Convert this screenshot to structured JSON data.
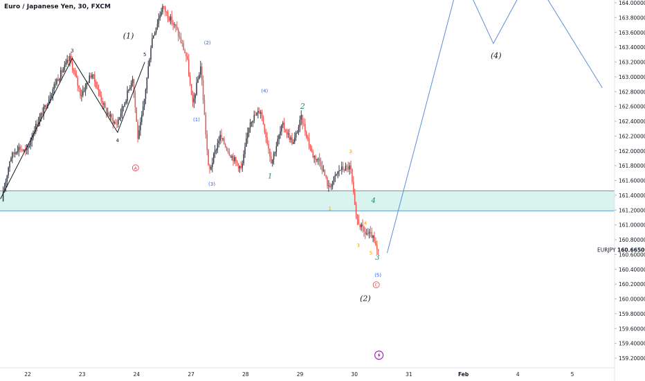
{
  "title": "Euro / Japanese Yen, 30, FXCM",
  "symbol": "EURJPY",
  "last_price": "160.66500",
  "colors": {
    "up": "#363a45",
    "down": "#ef5350",
    "wave_line": "#5b8ed8",
    "zone_fill": "#d9f3ee",
    "zone_border": "#5b9bd5",
    "black": "#131722",
    "green": "#1b8a5a",
    "blue": "#2962ff",
    "orange": "#f59e0b",
    "red_mark": "#f23645",
    "purple": "#9c27b0"
  },
  "chart_data": {
    "type": "candlestick",
    "ylim": [
      159.1,
      164.05
    ],
    "y_ticks": [
      "159.20000",
      "159.40000",
      "159.60000",
      "159.80000",
      "160.00000",
      "160.20000",
      "160.40000",
      "160.60000",
      "160.80000",
      "161.00000",
      "161.20000",
      "161.40000",
      "161.60000",
      "161.80000",
      "162.00000",
      "162.20000",
      "162.40000",
      "162.60000",
      "162.80000",
      "163.00000",
      "163.20000",
      "163.40000",
      "163.60000",
      "163.80000",
      "164.00000"
    ],
    "x_ticks": [
      {
        "label": "22",
        "x": 1.0
      },
      {
        "label": "23",
        "x": 2.0
      },
      {
        "label": "24",
        "x": 3.0
      },
      {
        "label": "27",
        "x": 4.0
      },
      {
        "label": "28",
        "x": 5.0
      },
      {
        "label": "29",
        "x": 6.0
      },
      {
        "label": "30",
        "x": 7.0
      },
      {
        "label": "31",
        "x": 8.0
      },
      {
        "label": "Feb",
        "x": 9.0
      },
      {
        "label": "4",
        "x": 10.0
      },
      {
        "label": "5",
        "x": 11.0
      }
    ],
    "price_path": [
      [
        0.55,
        161.32
      ],
      [
        0.7,
        161.9
      ],
      [
        0.85,
        162.05
      ],
      [
        1.0,
        161.98
      ],
      [
        1.15,
        162.3
      ],
      [
        1.35,
        162.6
      ],
      [
        1.55,
        162.95
      ],
      [
        1.8,
        163.25
      ],
      [
        2.0,
        162.75
      ],
      [
        2.2,
        163.05
      ],
      [
        2.45,
        162.55
      ],
      [
        2.65,
        162.35
      ],
      [
        2.8,
        162.65
      ],
      [
        2.95,
        163.0
      ],
      [
        3.05,
        162.15
      ],
      [
        3.15,
        162.6
      ],
      [
        3.3,
        163.5
      ],
      [
        3.5,
        163.95
      ],
      [
        3.75,
        163.65
      ],
      [
        3.95,
        163.25
      ],
      [
        4.05,
        162.6
      ],
      [
        4.2,
        163.15
      ],
      [
        4.35,
        161.7
      ],
      [
        4.55,
        162.2
      ],
      [
        4.75,
        161.95
      ],
      [
        4.95,
        161.75
      ],
      [
        5.1,
        162.4
      ],
      [
        5.3,
        162.55
      ],
      [
        5.5,
        161.85
      ],
      [
        5.7,
        162.35
      ],
      [
        5.9,
        162.1
      ],
      [
        6.05,
        162.45
      ],
      [
        6.25,
        161.95
      ],
      [
        6.4,
        161.85
      ],
      [
        6.55,
        161.5
      ],
      [
        6.75,
        161.75
      ],
      [
        6.95,
        161.78
      ],
      [
        7.05,
        161.1
      ],
      [
        7.2,
        160.9
      ],
      [
        7.35,
        160.85
      ],
      [
        7.45,
        160.62
      ]
    ],
    "wave_degree_black": {
      "points": [
        [
          0.5,
          161.35
        ],
        [
          1.82,
          163.25
        ],
        [
          2.65,
          162.25
        ],
        [
          3.15,
          163.2
        ]
      ],
      "labels": [
        {
          "text": "3",
          "x": 1.82,
          "y": 163.33
        },
        {
          "text": "4",
          "x": 2.65,
          "y": 162.12
        },
        {
          "text": "5",
          "x": 3.15,
          "y": 163.28
        }
      ]
    },
    "projection": {
      "points": [
        [
          7.6,
          160.62
        ],
        [
          8.95,
          164.4
        ],
        [
          9.55,
          163.45
        ],
        [
          10.25,
          164.4
        ],
        [
          11.55,
          162.85
        ]
      ]
    },
    "zone": [
      161.19,
      161.46
    ],
    "annotations": [
      {
        "text": "(1)",
        "x": 2.85,
        "y": 163.52,
        "color": "black",
        "size": 11,
        "italic": true
      },
      {
        "text": "(2)",
        "x": 7.2,
        "y": 159.97,
        "color": "black",
        "size": 11,
        "italic": true
      },
      {
        "text": "(4)",
        "x": 9.6,
        "y": 163.25,
        "color": "black",
        "size": 11,
        "italic": true
      },
      {
        "text": "2",
        "x": 6.05,
        "y": 162.57,
        "color": "green",
        "size": 11,
        "italic": true
      },
      {
        "text": "1",
        "x": 5.45,
        "y": 161.63,
        "color": "green",
        "size": 10,
        "italic": true
      },
      {
        "text": "4",
        "x": 7.35,
        "y": 161.3,
        "color": "green",
        "size": 10,
        "italic": true
      },
      {
        "text": "3",
        "x": 7.42,
        "y": 160.53,
        "color": "green",
        "size": 10,
        "italic": true
      },
      {
        "text": "(2)",
        "x": 4.3,
        "y": 163.44,
        "color": "blue",
        "size": 7,
        "italic": false
      },
      {
        "text": "(1)",
        "x": 4.1,
        "y": 162.4,
        "color": "blue",
        "size": 7,
        "italic": false
      },
      {
        "text": "(4)",
        "x": 5.35,
        "y": 162.79,
        "color": "blue",
        "size": 7,
        "italic": false
      },
      {
        "text": "(3)",
        "x": 4.38,
        "y": 161.53,
        "color": "blue",
        "size": 7,
        "italic": false
      },
      {
        "text": "(5)",
        "x": 7.43,
        "y": 160.3,
        "color": "blue",
        "size": 7,
        "italic": false
      },
      {
        "text": "3",
        "x": 6.93,
        "y": 161.97,
        "color": "orange",
        "size": 7,
        "italic": false
      },
      {
        "text": "1",
        "x": 6.55,
        "y": 161.2,
        "color": "orange",
        "size": 7,
        "italic": false
      },
      {
        "text": "4",
        "x": 7.2,
        "y": 161.0,
        "color": "orange",
        "size": 7,
        "italic": false
      },
      {
        "text": "3",
        "x": 7.07,
        "y": 160.7,
        "color": "orange",
        "size": 7,
        "italic": false
      },
      {
        "text": "5",
        "x": 7.3,
        "y": 160.6,
        "color": "orange",
        "size": 7,
        "italic": false
      },
      {
        "text": "2",
        "x": 7.4,
        "y": 160.72,
        "color": "orange",
        "size": 6,
        "italic": false
      }
    ],
    "circled_marks": [
      {
        "text": "A",
        "x": 2.98,
        "y": 161.77,
        "color": "red_mark"
      },
      {
        "text": "C",
        "x": 7.4,
        "y": 160.19,
        "color": "red_mark"
      }
    ],
    "event_marker": {
      "x": 7.45,
      "y": 159.24,
      "color": "purple"
    }
  }
}
